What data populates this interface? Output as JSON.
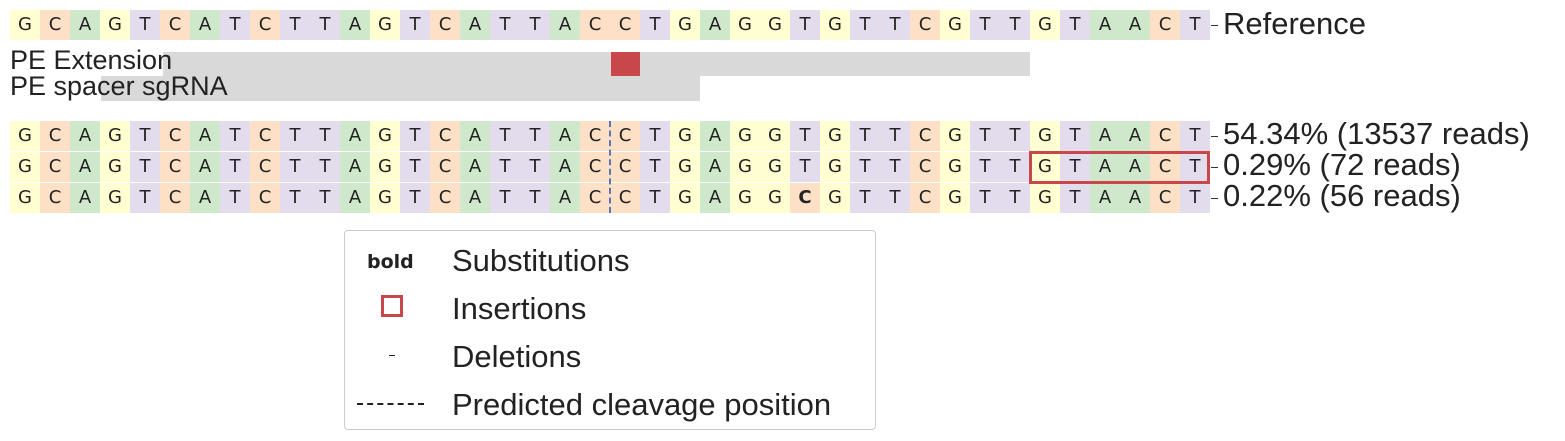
{
  "colors": {
    "A": "#cfe8cc",
    "C": "#fde0c6",
    "G": "#ffffd2",
    "T": "#e2dced",
    "bar": "#d9d9d9",
    "mark": "#c8474b",
    "cut": "#5a76b5"
  },
  "reference": {
    "label": "Reference",
    "sequence": "GCAGTCATCTTAGTCATTACCTGAGGTGTTCGTTGTAACT"
  },
  "tracks": [
    {
      "label": "PE Extension"
    },
    {
      "label": "PE spacer sgRNA"
    }
  ],
  "alleles": [
    {
      "sequence": "GCAGTCATCTTAGTCATTACCTGAGGTGTTCGTTGTAACT",
      "label": "54.34% (13537 reads)",
      "bold_positions": [],
      "insertion": null
    },
    {
      "sequence": "GCAGTCATCTTAGTCATTACCTGAGGTGTTCGTTGTAACT",
      "label": "0.29% (72 reads)",
      "bold_positions": [],
      "insertion": [
        34,
        39
      ]
    },
    {
      "sequence": "GCAGTCATCTTAGTCATTACCTGAGGCGTTCGTTGTAACT",
      "label": "0.22% (56 reads)",
      "bold_positions": [
        26
      ],
      "insertion": null
    }
  ],
  "cleavage_index": 20,
  "legend": {
    "bold_marker": "bold",
    "substitutions": "Substitutions",
    "insertions": "Insertions",
    "deletions": "Deletions",
    "predicted_cleavage": "Predicted cleavage position"
  }
}
